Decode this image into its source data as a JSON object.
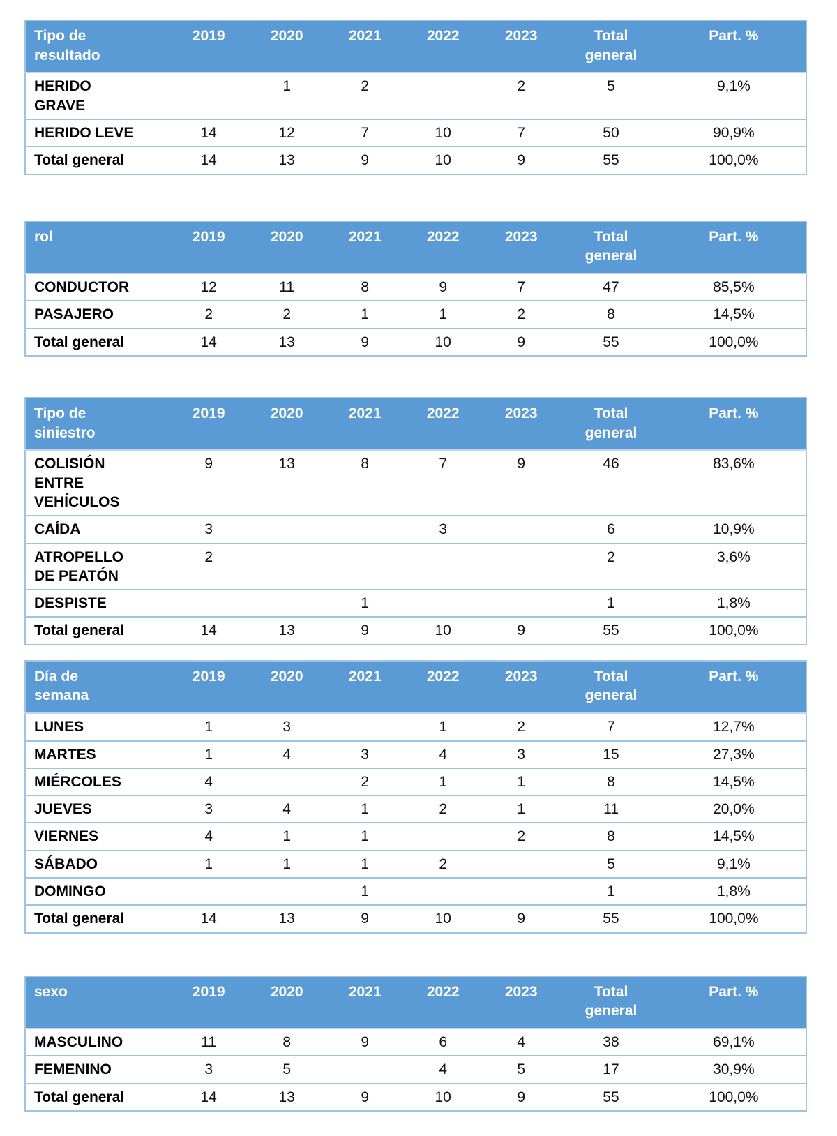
{
  "style": {
    "header_bg": "#5B9BD5",
    "header_text": "#FFFFFF",
    "border_color": "#9DC3E6",
    "body_bg": "#FFFFFF",
    "body_text": "#111111"
  },
  "tables": [
    {
      "id": "tipo-de-resultado",
      "header": [
        "Tipo de\nresultado",
        "2019",
        "2020",
        "2021",
        "2022",
        "2023",
        "Total\ngeneral",
        "Part. %"
      ],
      "rows": [
        {
          "label": "HERIDO\nGRAVE",
          "values": [
            "",
            "1",
            "2",
            "",
            "2",
            "5",
            "9,1%"
          ],
          "is_total": false
        },
        {
          "label": "HERIDO LEVE",
          "values": [
            "14",
            "12",
            "7",
            "10",
            "7",
            "50",
            "90,9%"
          ],
          "is_total": false
        },
        {
          "label": "Total general",
          "values": [
            "14",
            "13",
            "9",
            "10",
            "9",
            "55",
            "100,0%"
          ],
          "is_total": true
        }
      ]
    },
    {
      "id": "rol",
      "header": [
        "rol",
        "2019",
        "2020",
        "2021",
        "2022",
        "2023",
        "Total\ngeneral",
        "Part. %"
      ],
      "rows": [
        {
          "label": "CONDUCTOR",
          "values": [
            "12",
            "11",
            "8",
            "9",
            "7",
            "47",
            "85,5%"
          ],
          "is_total": false
        },
        {
          "label": "PASAJERO",
          "values": [
            "2",
            "2",
            "1",
            "1",
            "2",
            "8",
            "14,5%"
          ],
          "is_total": false
        },
        {
          "label": "Total general",
          "values": [
            "14",
            "13",
            "9",
            "10",
            "9",
            "55",
            "100,0%"
          ],
          "is_total": true
        }
      ]
    },
    {
      "id": "tipo-de-siniestro",
      "header": [
        "Tipo de\nsiniestro",
        "2019",
        "2020",
        "2021",
        "2022",
        "2023",
        "Total\ngeneral",
        "Part. %"
      ],
      "rows": [
        {
          "label": "COLISIÓN\nENTRE\nVEHÍCULOS",
          "values": [
            "9",
            "13",
            "8",
            "7",
            "9",
            "46",
            "83,6%"
          ],
          "is_total": false
        },
        {
          "label": "CAÍDA",
          "values": [
            "3",
            "",
            "",
            "3",
            "",
            "6",
            "10,9%"
          ],
          "is_total": false
        },
        {
          "label": "ATROPELLO\nDE PEATÓN",
          "values": [
            "2",
            "",
            "",
            "",
            "",
            "2",
            "3,6%"
          ],
          "is_total": false
        },
        {
          "label": "DESPISTE",
          "values": [
            "",
            "",
            "1",
            "",
            "",
            "1",
            "1,8%"
          ],
          "is_total": false
        },
        {
          "label": "Total general",
          "values": [
            "14",
            "13",
            "9",
            "10",
            "9",
            "55",
            "100,0%"
          ],
          "is_total": true
        }
      ]
    },
    {
      "id": "dia-de-semana",
      "header": [
        "Día de\nsemana",
        "2019",
        "2020",
        "2021",
        "2022",
        "2023",
        "Total\ngeneral",
        "Part. %"
      ],
      "rows": [
        {
          "label": "LUNES",
          "values": [
            "1",
            "3",
            "",
            "1",
            "2",
            "7",
            "12,7%"
          ],
          "is_total": false
        },
        {
          "label": "MARTES",
          "values": [
            "1",
            "4",
            "3",
            "4",
            "3",
            "15",
            "27,3%"
          ],
          "is_total": false
        },
        {
          "label": "MIÉRCOLES",
          "values": [
            "4",
            "",
            "2",
            "1",
            "1",
            "8",
            "14,5%"
          ],
          "is_total": false
        },
        {
          "label": "JUEVES",
          "values": [
            "3",
            "4",
            "1",
            "2",
            "1",
            "11",
            "20,0%"
          ],
          "is_total": false
        },
        {
          "label": "VIERNES",
          "values": [
            "4",
            "1",
            "1",
            "",
            "2",
            "8",
            "14,5%"
          ],
          "is_total": false
        },
        {
          "label": "SÁBADO",
          "values": [
            "1",
            "1",
            "1",
            "2",
            "",
            "5",
            "9,1%"
          ],
          "is_total": false
        },
        {
          "label": "DOMINGO",
          "values": [
            "",
            "",
            "1",
            "",
            "",
            "1",
            "1,8%"
          ],
          "is_total": false
        },
        {
          "label": "Total general",
          "values": [
            "14",
            "13",
            "9",
            "10",
            "9",
            "55",
            "100,0%"
          ],
          "is_total": true
        }
      ]
    },
    {
      "id": "sexo",
      "header": [
        "sexo",
        "2019",
        "2020",
        "2021",
        "2022",
        "2023",
        "Total\ngeneral",
        "Part. %"
      ],
      "rows": [
        {
          "label": "MASCULINO",
          "values": [
            "11",
            "8",
            "9",
            "6",
            "4",
            "38",
            "69,1%"
          ],
          "is_total": false
        },
        {
          "label": "FEMENINO",
          "values": [
            "3",
            "5",
            "",
            "4",
            "5",
            "17",
            "30,9%"
          ],
          "is_total": false
        },
        {
          "label": "Total general",
          "values": [
            "14",
            "13",
            "9",
            "10",
            "9",
            "55",
            "100,0%"
          ],
          "is_total": true
        }
      ]
    }
  ]
}
